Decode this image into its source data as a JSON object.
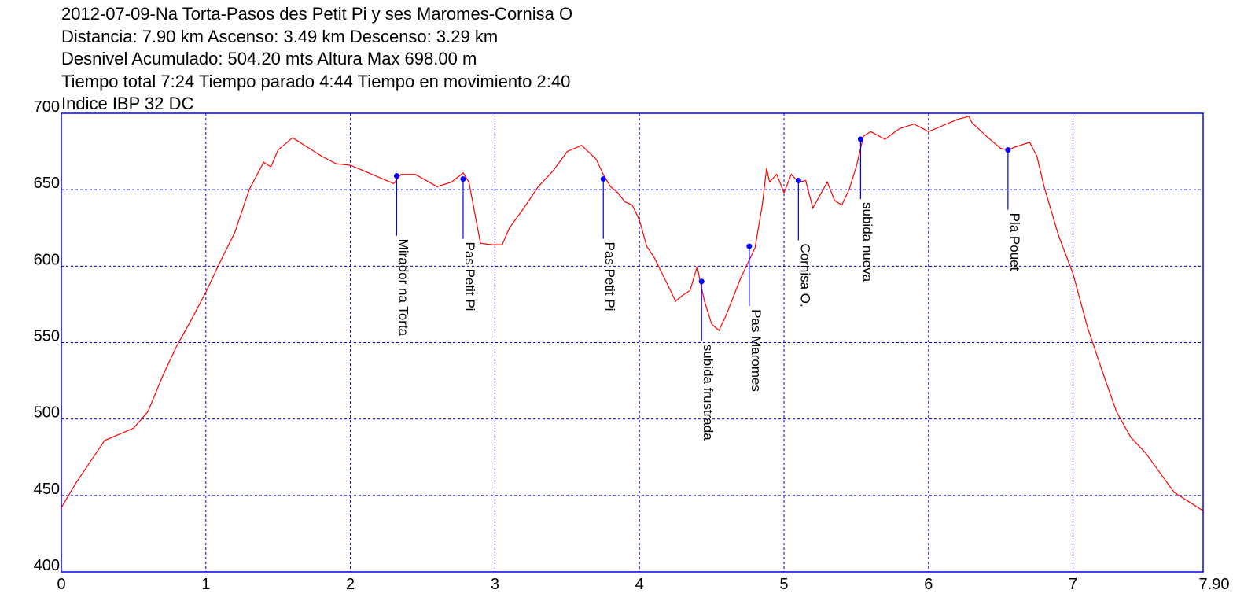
{
  "header": {
    "line1": "2012-07-09-Na Torta-Pasos des Petit Pi y ses Maromes-Cornisa O",
    "line2": "Distancia: 7.90 km Ascenso: 3.49 km Descenso: 3.29 km",
    "line3": "Desnivel Acumulado: 504.20 mts  Altura Max 698.00 m",
    "line4": "Tiempo total 7:24 Tiempo parado 4:44 Tiempo en movimiento 2:40",
    "line5": "Indice IBP 32 DC"
  },
  "colors": {
    "profile": "#ff0000",
    "frame": "#0000ff",
    "grid": "#0000cc",
    "waypoint": "#0000ff"
  },
  "chart_data": {
    "type": "line",
    "title": "2012-07-09-Na Torta-Pasos des Petit Pi y ses Maromes-Cornisa O",
    "xlabel": "",
    "ylabel": "",
    "xlim": [
      0,
      7.9
    ],
    "ylim": [
      400,
      700
    ],
    "grid": true,
    "x_ticks": [
      "0",
      "1",
      "2",
      "3",
      "4",
      "5",
      "6",
      "7",
      "7.90"
    ],
    "x_tick_values": [
      0,
      1,
      2,
      3,
      4,
      5,
      6,
      7,
      7.9
    ],
    "y_ticks": [
      "400",
      "450",
      "500",
      "550",
      "600",
      "650",
      "700"
    ],
    "y_tick_values": [
      400,
      450,
      500,
      550,
      600,
      650,
      700
    ],
    "series": [
      {
        "x": [
          0,
          0.1,
          0.2,
          0.3,
          0.4,
          0.5,
          0.6,
          0.7,
          0.8,
          0.9,
          1.0,
          1.1,
          1.2,
          1.3,
          1.4,
          1.45,
          1.5,
          1.6,
          1.7,
          1.8,
          1.9,
          2.0,
          2.1,
          2.2,
          2.3,
          2.35,
          2.45,
          2.6,
          2.7,
          2.78,
          2.82,
          2.9,
          2.98,
          3.05,
          3.1,
          3.2,
          3.3,
          3.4,
          3.5,
          3.6,
          3.7,
          3.75,
          3.8,
          3.85,
          3.9,
          3.95,
          4.0,
          4.05,
          4.1,
          4.2,
          4.25,
          4.3,
          4.35,
          4.4,
          4.42,
          4.45,
          4.5,
          4.55,
          4.6,
          4.7,
          4.8,
          4.85,
          4.88,
          4.9,
          4.95,
          5.0,
          5.05,
          5.1,
          5.15,
          5.2,
          5.3,
          5.35,
          5.4,
          5.45,
          5.5,
          5.55,
          5.6,
          5.7,
          5.8,
          5.9,
          6.0,
          6.1,
          6.2,
          6.28,
          6.3,
          6.4,
          6.5,
          6.55,
          6.6,
          6.7,
          6.75,
          6.8,
          6.9,
          7.0,
          7.1,
          7.2,
          7.3,
          7.4,
          7.5,
          7.6,
          7.7,
          7.8,
          7.9
        ],
        "values": [
          442,
          458,
          472,
          486,
          490,
          494,
          505,
          528,
          548,
          565,
          583,
          603,
          622,
          650,
          668,
          665,
          676,
          684,
          678,
          672,
          667,
          666,
          662,
          658,
          654,
          660,
          660,
          652,
          655,
          661,
          655,
          615,
          614,
          614,
          625,
          638,
          652,
          662,
          675,
          679,
          670,
          660,
          652,
          648,
          642,
          640,
          630,
          613,
          606,
          587,
          577,
          581,
          584,
          600,
          590,
          577,
          562,
          558,
          568,
          592,
          612,
          640,
          664,
          655,
          660,
          648,
          660,
          655,
          656,
          638,
          655,
          643,
          640,
          650,
          665,
          685,
          688,
          683,
          690,
          693,
          688,
          692,
          696,
          698,
          694,
          685,
          677,
          676,
          678,
          681,
          672,
          652,
          620,
          595,
          560,
          532,
          505,
          488,
          478,
          465,
          452,
          446,
          440
        ]
      }
    ],
    "waypoints": [
      {
        "x": 2.32,
        "y": 659,
        "label": "Mirador na Torta"
      },
      {
        "x": 2.78,
        "y": 657,
        "label": "Pas Petit Pi"
      },
      {
        "x": 3.75,
        "y": 657,
        "label": "Pas Petit Pi"
      },
      {
        "x": 4.43,
        "y": 590,
        "label": "subida frustrada"
      },
      {
        "x": 4.76,
        "y": 613,
        "label": "Pas Maromes"
      },
      {
        "x": 5.1,
        "y": 656,
        "label": "Cornisa O."
      },
      {
        "x": 5.53,
        "y": 683,
        "label": "subida nueva"
      },
      {
        "x": 6.55,
        "y": 676,
        "label": "Pla Pouet"
      }
    ]
  }
}
